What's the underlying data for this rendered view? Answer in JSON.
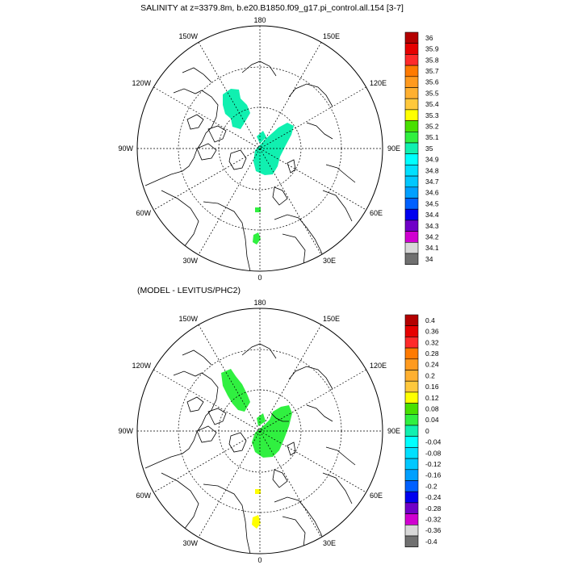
{
  "top_panel": {
    "title": "SALINITY at z=3379.8m, b.e20.B1850.f09_g17.pi_control.all.154 [3-7]",
    "lon_labels": {
      "top": "180",
      "bottom": "0",
      "left": "90W",
      "right": "90E",
      "ul_outer": "150W",
      "ul_inner": "120W",
      "ur_outer": "150E",
      "ur_inner": "120E",
      "ll_outer": "60W",
      "ll_inner": "30W",
      "lr_outer": "60E",
      "lr_inner": "30E"
    },
    "colorbar": {
      "labels": [
        "36",
        "35.9",
        "35.8",
        "35.7",
        "35.6",
        "35.5",
        "35.4",
        "35.3",
        "35.2",
        "35.1",
        "35",
        "34.9",
        "34.8",
        "34.7",
        "34.6",
        "34.5",
        "34.4",
        "34.3",
        "34.2",
        "34.1",
        "34"
      ],
      "colors": [
        "#b40000",
        "#e60000",
        "#ff2a2a",
        "#ff7a00",
        "#ff9a1e",
        "#ffb030",
        "#ffc83c",
        "#ffff00",
        "#48e000",
        "#30f040",
        "#10f0b0",
        "#00ffff",
        "#00e0ff",
        "#00c8ff",
        "#00a0ff",
        "#0060ff",
        "#0000f0",
        "#7000c8",
        "#d000d0",
        "#d8d8d8",
        "#707070"
      ]
    }
  },
  "bottom_panel": {
    "title": "(MODEL - LEVITUS/PHC2)",
    "lon_labels": {
      "top": "180",
      "bottom": "0",
      "left": "90W",
      "right": "90E",
      "ul_outer": "150W",
      "ul_inner": "120W",
      "ur_outer": "150E",
      "ur_inner": "120E",
      "ll_outer": "60W",
      "ll_inner": "30W",
      "lr_outer": "60E",
      "lr_inner": "30E"
    },
    "colorbar": {
      "labels": [
        "0.4",
        "0.36",
        "0.32",
        "0.28",
        "0.24",
        "0.2",
        "0.16",
        "0.12",
        "0.08",
        "0.04",
        "0",
        "-0.04",
        "-0.08",
        "-0.12",
        "-0.16",
        "-0.2",
        "-0.24",
        "-0.28",
        "-0.32",
        "-0.36",
        "-0.4"
      ],
      "colors": [
        "#b40000",
        "#e60000",
        "#ff2a2a",
        "#ff7a00",
        "#ff9a1e",
        "#ffb030",
        "#ffc83c",
        "#ffff00",
        "#48e000",
        "#30f040",
        "#10f0b0",
        "#00ffff",
        "#00e0ff",
        "#00c8ff",
        "#00a0ff",
        "#0060ff",
        "#0000f0",
        "#7000c8",
        "#d000d0",
        "#d8d8d8",
        "#707070"
      ]
    }
  }
}
